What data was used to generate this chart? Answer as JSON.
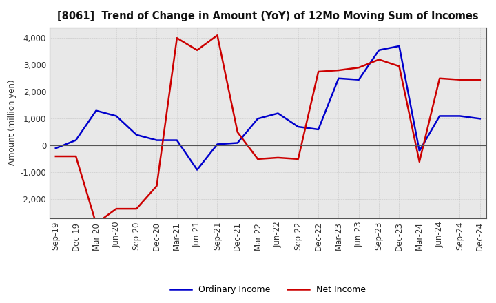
{
  "title": "[8061]  Trend of Change in Amount (YoY) of 12Mo Moving Sum of Incomes",
  "ylabel": "Amount (million yen)",
  "labels": [
    "Sep-19",
    "Dec-19",
    "Mar-20",
    "Jun-20",
    "Sep-20",
    "Dec-20",
    "Mar-21",
    "Jun-21",
    "Sep-21",
    "Dec-21",
    "Mar-22",
    "Jun-22",
    "Sep-22",
    "Dec-22",
    "Mar-23",
    "Jun-23",
    "Sep-23",
    "Dec-23",
    "Mar-24",
    "Jun-24",
    "Sep-24",
    "Dec-24"
  ],
  "ordinary_income": [
    -100,
    200,
    1300,
    1100,
    400,
    200,
    200,
    -900,
    50,
    100,
    1000,
    1200,
    700,
    600,
    2500,
    2450,
    3550,
    3700,
    -200,
    1100,
    1100,
    1000
  ],
  "net_income": [
    -400,
    -400,
    -2900,
    -2350,
    -2350,
    -1500,
    4000,
    3550,
    4100,
    500,
    -500,
    -450,
    -500,
    2750,
    2800,
    2900,
    3200,
    2950,
    -600,
    2500,
    2450,
    2450
  ],
  "ordinary_color": "#0000cc",
  "net_color": "#cc0000",
  "bg_color": "#ffffff",
  "plot_bg_color": "#e8e8e8",
  "grid_color": "#999999",
  "ylim": [
    -2700,
    4400
  ],
  "yticks": [
    -2000,
    -1000,
    0,
    1000,
    2000,
    3000,
    4000
  ],
  "legend_labels": [
    "Ordinary Income",
    "Net Income"
  ],
  "line_width": 1.8,
  "title_fontsize": 10.5,
  "axis_fontsize": 8.5,
  "ylabel_fontsize": 8.5
}
